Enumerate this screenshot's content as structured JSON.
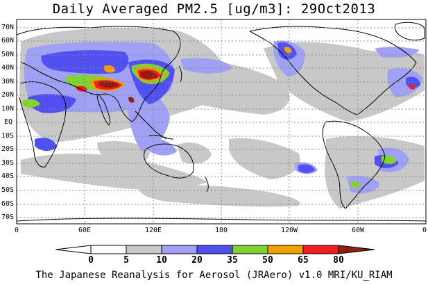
{
  "title": "Daily Averaged PM2.5 [ug/m3]: 29Oct2013",
  "credit": "The Japanese Reanalysis for Aerosol (JRAero) v1.0 MRI/KU_RIAM",
  "lat_labels": [
    "70N",
    "60N",
    "50N",
    "40N",
    "30N",
    "20N",
    "10N",
    "EQ",
    "10S",
    "20S",
    "30S",
    "40S",
    "50S",
    "60S",
    "70S"
  ],
  "lon_labels": [
    "0",
    "60E",
    "120E",
    "180",
    "120W",
    "60W",
    "0"
  ],
  "colorbar": {
    "ticks": [
      "0",
      "5",
      "10",
      "20",
      "35",
      "50",
      "65",
      "80"
    ],
    "colors": [
      "#ffffff",
      "#c8c8c8",
      "#a0a0f5",
      "#5050f0",
      "#82d232",
      "#f0a000",
      "#f01e1e",
      "#8c1e14"
    ]
  }
}
